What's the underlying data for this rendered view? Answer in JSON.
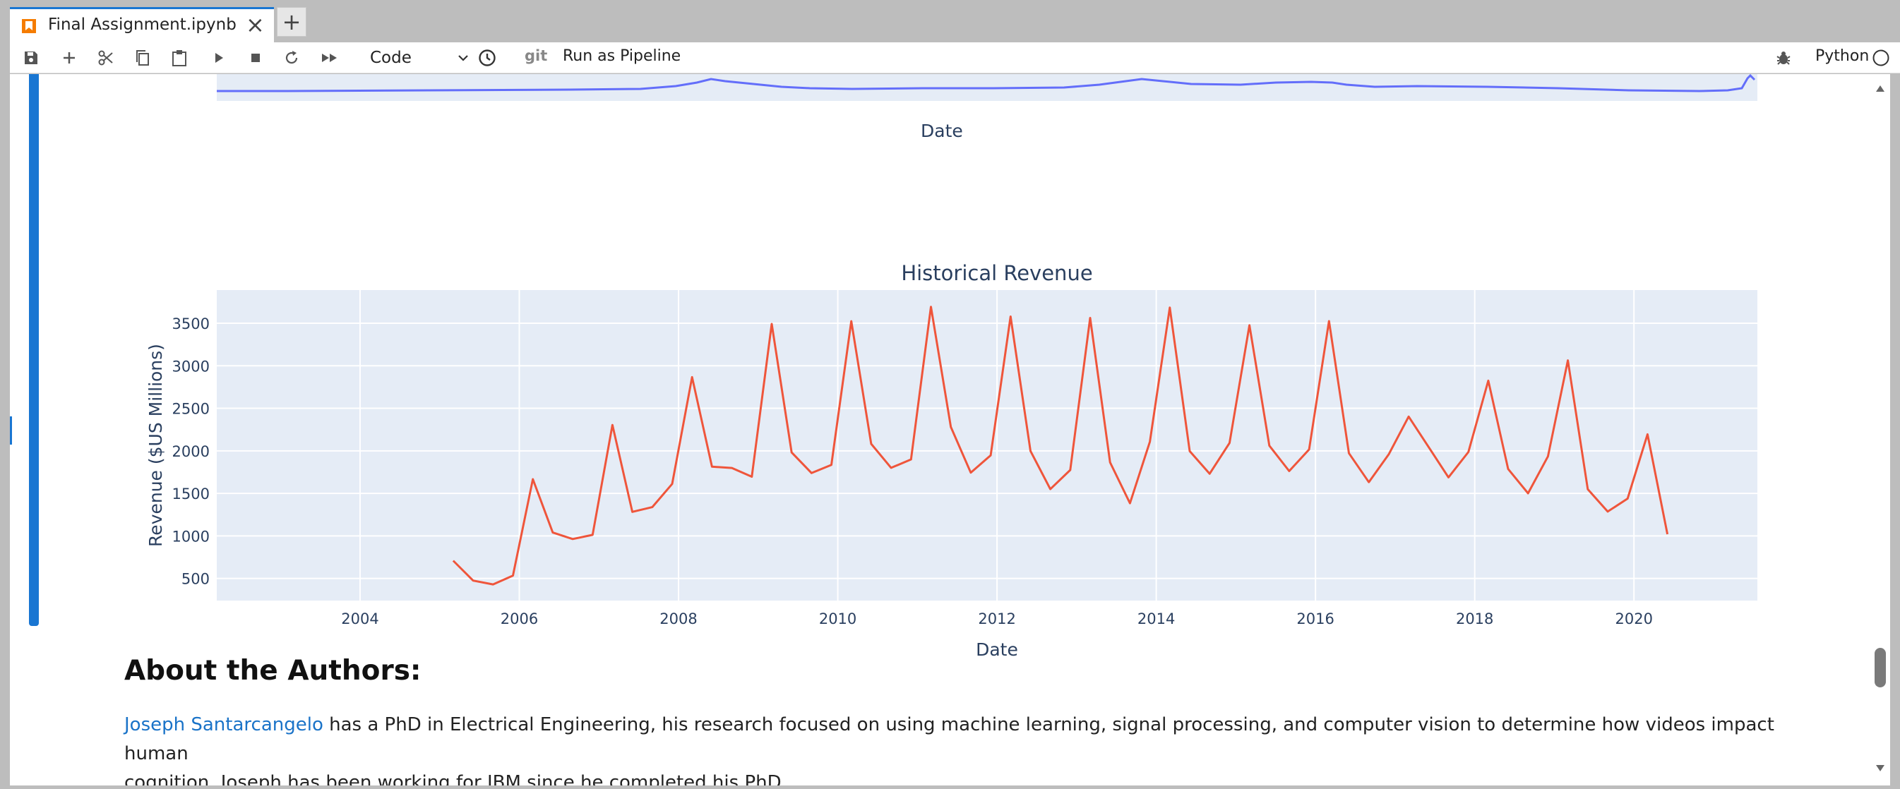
{
  "tab": {
    "title": "Final Assignment.ipynb"
  },
  "toolbar": {
    "cell_type": "Code",
    "git_label": "git",
    "pipeline_label": "Run as Pipeline",
    "kernel_name": "Python"
  },
  "top_plot": {
    "xlabel": "Date"
  },
  "chart_data": {
    "type": "line",
    "title": "Historical Revenue",
    "xlabel": "Date",
    "ylabel": "Revenue ($US Millions)",
    "xlim": [
      2002.2,
      2021.55
    ],
    "ylim": [
      240,
      3890
    ],
    "x_ticks": [
      "2004",
      "2006",
      "2008",
      "2010",
      "2012",
      "2014",
      "2016",
      "2018",
      "2020"
    ],
    "y_ticks": [
      "500",
      "1000",
      "1500",
      "2000",
      "2500",
      "3000",
      "3500"
    ],
    "grid": true,
    "color": "#ef553b",
    "series": [
      {
        "x": [
          2005.17,
          2005.42,
          2005.67,
          2005.92,
          2006.17,
          2006.42,
          2006.67,
          2006.92,
          2007.17,
          2007.42,
          2007.67,
          2007.92,
          2008.17,
          2008.42,
          2008.67,
          2008.92,
          2009.17,
          2009.42,
          2009.67,
          2009.92,
          2010.17,
          2010.42,
          2010.67,
          2010.92,
          2011.17,
          2011.42,
          2011.67,
          2011.92,
          2012.17,
          2012.42,
          2012.67,
          2012.92,
          2013.17,
          2013.42,
          2013.67,
          2013.92,
          2014.17,
          2014.42,
          2014.67,
          2014.92,
          2015.17,
          2015.42,
          2015.67,
          2015.92,
          2016.17,
          2016.42,
          2016.67,
          2016.92,
          2017.17,
          2017.42,
          2017.67,
          2017.92,
          2018.17,
          2018.42,
          2018.67,
          2018.92,
          2019.17,
          2019.42,
          2019.67,
          2019.92,
          2020.17,
          2020.42
        ],
        "y": [
          709,
          475,
          430,
          534,
          1667,
          1040,
          963,
          1012,
          2304,
          1283,
          1338,
          1611,
          2866,
          1814,
          1799,
          1696,
          3492,
          1981,
          1739,
          1835,
          3524,
          2082,
          1800,
          1899,
          3693,
          2281,
          1744,
          1947,
          3579,
          1998,
          1550,
          1775,
          3562,
          1865,
          1384,
          2107,
          3684,
          1996,
          1731,
          2092,
          3476,
          2061,
          1762,
          2016,
          3525,
          1972,
          1632,
          1959,
          2403,
          2046,
          1688,
          1986,
          2825,
          1786,
          1501,
          1935,
          3063,
          1548,
          1286,
          1439,
          2194,
          1021
        ]
      }
    ]
  },
  "about": {
    "title": "About the Authors:",
    "author_link": "Joseph Santarcangelo",
    "text_line1": " has a PhD in Electrical Engineering, his research focused on using machine learning, signal processing, and computer vision to determine how videos impact human",
    "text_line2": "cognition. Joseph has been working for IBM since he completed his PhD."
  }
}
